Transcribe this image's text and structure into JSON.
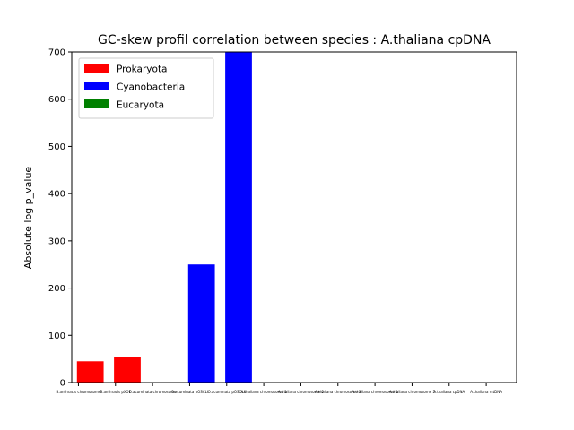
{
  "chart_data": {
    "type": "bar",
    "title": "GC-skew profil correlation between species : A.thaliana cpDNA",
    "xlabel": "",
    "ylabel": "Absolute log p_value",
    "ylim": [
      0,
      700
    ],
    "yticks": [
      0,
      100,
      200,
      300,
      400,
      500,
      600,
      700
    ],
    "categories": [
      "B.anthracis chromosome",
      "B.anthracis pXO1",
      "O.acuminata chromosome",
      "O.acuminata pOSCLI",
      "O.acuminata pOSCLII",
      "A.thaliana chromosome 1",
      "A.thaliana chromosome 2",
      "A.thaliana chromosome 3",
      "A.thaliana chromosome 4",
      "A.thaliana chromosome 5",
      "A.thaliana cpDNA",
      "A.thaliana mtDNA"
    ],
    "values": [
      45,
      55,
      0,
      250,
      700,
      0,
      0,
      0,
      0,
      0,
      0.5,
      0
    ],
    "groups": [
      "Prokaryota",
      "Prokaryota",
      "Cyanobacteria",
      "Cyanobacteria",
      "Cyanobacteria",
      "Eucaryota",
      "Eucaryota",
      "Eucaryota",
      "Eucaryota",
      "Eucaryota",
      "Eucaryota",
      "Eucaryota"
    ],
    "legend": {
      "placement": "top-left",
      "entries": [
        {
          "name": "Prokaryota",
          "color": "#ff0000"
        },
        {
          "name": "Cyanobacteria",
          "color": "#0000ff"
        },
        {
          "name": "Eucaryota",
          "color": "#008000"
        }
      ]
    },
    "grid": false
  }
}
